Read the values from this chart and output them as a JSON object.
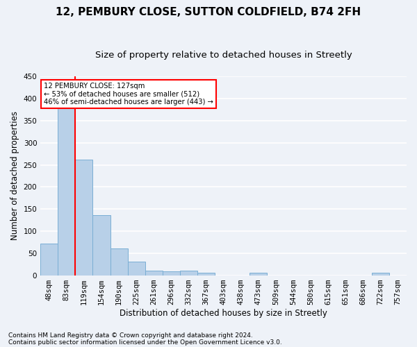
{
  "title": "12, PEMBURY CLOSE, SUTTON COLDFIELD, B74 2FH",
  "subtitle": "Size of property relative to detached houses in Streetly",
  "xlabel": "Distribution of detached houses by size in Streetly",
  "ylabel": "Number of detached properties",
  "footnote1": "Contains HM Land Registry data © Crown copyright and database right 2024.",
  "footnote2": "Contains public sector information licensed under the Open Government Licence v3.0.",
  "categories": [
    "48sqm",
    "83sqm",
    "119sqm",
    "154sqm",
    "190sqm",
    "225sqm",
    "261sqm",
    "296sqm",
    "332sqm",
    "367sqm",
    "403sqm",
    "438sqm",
    "473sqm",
    "509sqm",
    "544sqm",
    "580sqm",
    "615sqm",
    "651sqm",
    "686sqm",
    "722sqm",
    "757sqm"
  ],
  "values": [
    72,
    380,
    262,
    136,
    60,
    30,
    10,
    9,
    10,
    5,
    0,
    0,
    5,
    0,
    0,
    0,
    0,
    0,
    0,
    5,
    0
  ],
  "bar_color": "#b8d0e8",
  "bar_edge_color": "#7aaed4",
  "vline_color": "red",
  "vline_x_index": 2,
  "annotation_text": "12 PEMBURY CLOSE: 127sqm\n← 53% of detached houses are smaller (512)\n46% of semi-detached houses are larger (443) →",
  "annotation_box_color": "white",
  "annotation_box_edge": "red",
  "ylim": [
    0,
    450
  ],
  "yticks": [
    0,
    50,
    100,
    150,
    200,
    250,
    300,
    350,
    400,
    450
  ],
  "background_color": "#eef2f8",
  "grid_color": "#ffffff",
  "title_fontsize": 11,
  "subtitle_fontsize": 9.5,
  "axis_label_fontsize": 8.5,
  "tick_fontsize": 7.5,
  "footnote_fontsize": 6.5
}
